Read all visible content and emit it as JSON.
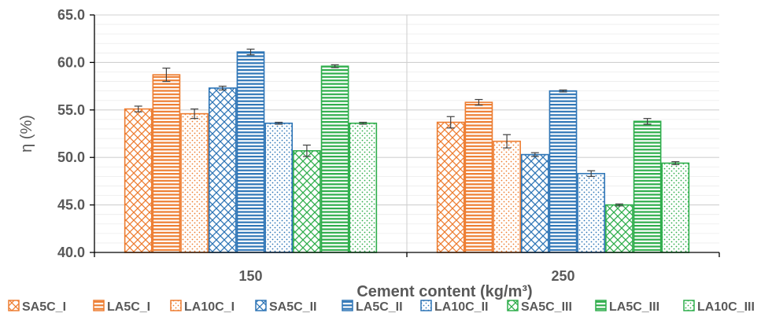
{
  "chart_data": {
    "type": "bar",
    "title": "",
    "xlabel": "Cement content (kg/m³)",
    "ylabel": "η (%)",
    "ylim": [
      40,
      65
    ],
    "yticks": [
      "40.0",
      "45.0",
      "50.0",
      "55.0",
      "60.0",
      "65.0"
    ],
    "categories": [
      "150",
      "250"
    ],
    "grid": true,
    "legend_position": "bottom",
    "series": [
      {
        "name": "SA5C_I",
        "color": "#ED7D31",
        "pattern": "crosshatch",
        "values": [
          55.1,
          53.7
        ],
        "errors": [
          0.3,
          0.6
        ]
      },
      {
        "name": "LA5C_I",
        "color": "#ED7D31",
        "pattern": "horizontal",
        "values": [
          58.7,
          55.8
        ],
        "errors": [
          0.7,
          0.3
        ]
      },
      {
        "name": "LA10C_I",
        "color": "#ED7D31",
        "pattern": "dots",
        "values": [
          54.6,
          51.7
        ],
        "errors": [
          0.5,
          0.7
        ]
      },
      {
        "name": "SA5C_II",
        "color": "#2E75B6",
        "pattern": "crosshatch",
        "values": [
          57.3,
          50.3
        ],
        "errors": [
          0.2,
          0.2
        ]
      },
      {
        "name": "LA5C_II",
        "color": "#2E75B6",
        "pattern": "horizontal",
        "values": [
          61.1,
          57.0
        ],
        "errors": [
          0.3,
          0.1
        ]
      },
      {
        "name": "LA10C_II",
        "color": "#2E75B6",
        "pattern": "dots",
        "values": [
          53.6,
          48.3
        ],
        "errors": [
          0.1,
          0.3
        ]
      },
      {
        "name": "SA5C_III",
        "color": "#2EAD4B",
        "pattern": "crosshatch",
        "values": [
          50.7,
          45.0
        ],
        "errors": [
          0.6,
          0.1
        ]
      },
      {
        "name": "LA5C_III",
        "color": "#2EAD4B",
        "pattern": "horizontal",
        "values": [
          59.6,
          53.8
        ],
        "errors": [
          0.15,
          0.3
        ]
      },
      {
        "name": "LA10C_III",
        "color": "#2EAD4B",
        "pattern": "dots",
        "values": [
          53.6,
          49.4
        ],
        "errors": [
          0.1,
          0.15
        ]
      }
    ]
  }
}
